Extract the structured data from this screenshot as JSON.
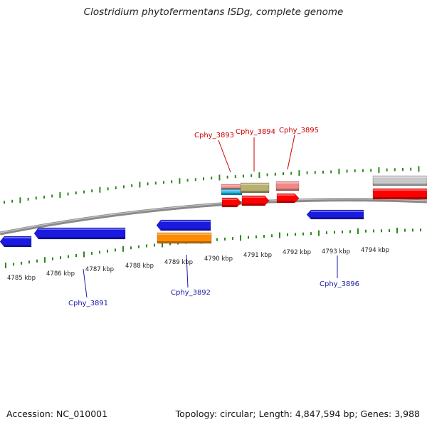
{
  "title": "Clostridium phytofermentans ISDg, complete genome",
  "footer": {
    "accession": "Accession: NC_010001",
    "summary": "Topology: circular; Length: 4,847,594 bp; Genes: 3,988"
  },
  "colors": {
    "tick": "#2a8a1a",
    "backbone": "#8a8a8a",
    "forward_label": "#cc0000",
    "reverse_label": "#1a1aaa",
    "blue_gene": "#1a1ae0",
    "red_gene": "#ff0000",
    "orange_gene": "#ff8c00",
    "olive_gene": "#b8b070",
    "pink_gene": "#f08888",
    "cyan_gene": "#22b8e8",
    "grey_gene": "#c8c8c8"
  },
  "scale_labels": [
    "4785 kbp",
    "4786 kbp",
    "4787 kbp",
    "4788 kbp",
    "4789 kbp",
    "4790 kbp",
    "4791 kbp",
    "4792 kbp",
    "4793 kbp",
    "4794 kbp"
  ],
  "gene_labels": [
    "Cphy_3891",
    "Cphy_3892",
    "Cphy_3893",
    "Cphy_3894",
    "Cphy_3895",
    "Cphy_3896"
  ]
}
